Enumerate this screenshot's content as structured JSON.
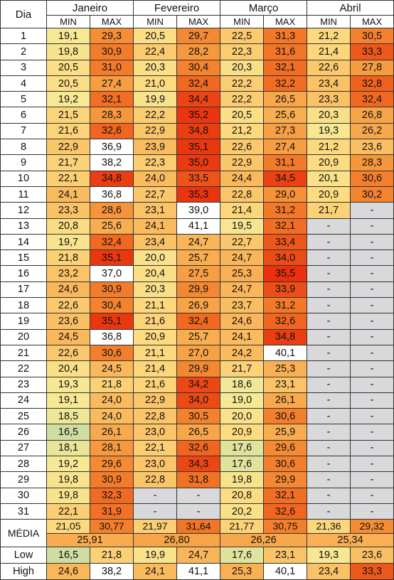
{
  "header": {
    "dia": "Dia",
    "months": [
      "Janeiro",
      "Fevereiro",
      "Março",
      "Abril"
    ],
    "min_label": "MIN",
    "max_label": "MAX"
  },
  "rows": [
    {
      "day": "1",
      "vals": [
        "19,1",
        "29,3",
        "20,5",
        "29,7",
        "22,5",
        "31,3",
        "21,2",
        "30,5"
      ]
    },
    {
      "day": "2",
      "vals": [
        "19,8",
        "30,9",
        "22,4",
        "28,2",
        "22,3",
        "31,6",
        "21,4",
        "33,3"
      ]
    },
    {
      "day": "3",
      "vals": [
        "20,5",
        "31,0",
        "20,3",
        "30,4",
        "20,3",
        "32,1",
        "22,6",
        "27,8"
      ]
    },
    {
      "day": "4",
      "vals": [
        "20,5",
        "27,4",
        "21,0",
        "32,4",
        "22,2",
        "32,2",
        "23,4",
        "32,8"
      ]
    },
    {
      "day": "5",
      "vals": [
        "19,2",
        "32,1",
        "19,9",
        "34,4",
        "22,2",
        "26,5",
        "23,3",
        "32,4"
      ]
    },
    {
      "day": "6",
      "vals": [
        "21,5",
        "28,3",
        "22,2",
        "35,2",
        "20,5",
        "25,6",
        "20,3",
        "26,8"
      ]
    },
    {
      "day": "7",
      "vals": [
        "21,6",
        "32,6",
        "22,9",
        "34,8",
        "21,2",
        "27,3",
        "19,3",
        "26,2"
      ]
    },
    {
      "day": "8",
      "vals": [
        "22,9",
        "36,9",
        "23,9",
        "35,1",
        "22,6",
        "27,4",
        "21,2",
        "23,6"
      ]
    },
    {
      "day": "9",
      "vals": [
        "21,7",
        "38,2",
        "22,3",
        "35,0",
        "22,9",
        "31,1",
        "20,9",
        "28,3"
      ]
    },
    {
      "day": "10",
      "vals": [
        "22,1",
        "34,8",
        "24,0",
        "33,5",
        "24,4",
        "34,5",
        "20,1",
        "30,6"
      ]
    },
    {
      "day": "11",
      "vals": [
        "24,1",
        "36,8",
        "22,7",
        "35,3",
        "22,8",
        "29,0",
        "20,9",
        "30,2"
      ]
    },
    {
      "day": "12",
      "vals": [
        "23,3",
        "28,6",
        "23,1",
        "39,0",
        "21,4",
        "31,2",
        "21,7",
        "-"
      ]
    },
    {
      "day": "13",
      "vals": [
        "20,8",
        "25,6",
        "24,1",
        "41,1",
        "19,5",
        "32,1",
        "-",
        "-"
      ]
    },
    {
      "day": "14",
      "vals": [
        "19,7",
        "32,4",
        "23,4",
        "24,7",
        "22,7",
        "33,4",
        "-",
        "-"
      ]
    },
    {
      "day": "15",
      "vals": [
        "21,8",
        "35,1",
        "20,0",
        "25,7",
        "24,7",
        "34,0",
        "-",
        "-"
      ]
    },
    {
      "day": "16",
      "vals": [
        "23,2",
        "37,0",
        "20,4",
        "27,5",
        "25,3",
        "35,5",
        "-",
        "-"
      ]
    },
    {
      "day": "17",
      "vals": [
        "24,6",
        "30,9",
        "20,3",
        "29,9",
        "24,7",
        "33,9",
        "-",
        "-"
      ]
    },
    {
      "day": "18",
      "vals": [
        "22,6",
        "30,4",
        "21,1",
        "26,9",
        "23,7",
        "31,2",
        "-",
        "-"
      ]
    },
    {
      "day": "19",
      "vals": [
        "23,6",
        "35,1",
        "21,6",
        "32,4",
        "24,6",
        "32,6",
        "-",
        "-"
      ]
    },
    {
      "day": "20",
      "vals": [
        "24,5",
        "36,8",
        "20,9",
        "25,7",
        "24,1",
        "34,8",
        "-",
        "-"
      ]
    },
    {
      "day": "21",
      "vals": [
        "22,6",
        "30,6",
        "21,1",
        "27,0",
        "24,2",
        "40,1",
        "-",
        "-"
      ]
    },
    {
      "day": "22",
      "vals": [
        "20,4",
        "24,5",
        "21,4",
        "29,9",
        "21,7",
        "25,3",
        "-",
        "-"
      ]
    },
    {
      "day": "23",
      "vals": [
        "19,3",
        "21,8",
        "21,6",
        "34,2",
        "18,6",
        "23,1",
        "-",
        "-"
      ]
    },
    {
      "day": "24",
      "vals": [
        "19,1",
        "24,0",
        "22,9",
        "34,0",
        "19,0",
        "26,1",
        "-",
        "-"
      ]
    },
    {
      "day": "25",
      "vals": [
        "18,5",
        "24,0",
        "22,8",
        "30,5",
        "20,0",
        "30,6",
        "-",
        "-"
      ]
    },
    {
      "day": "26",
      "vals": [
        "16,5",
        "26,1",
        "23,0",
        "26,5",
        "20,9",
        "25,9",
        "-",
        "-"
      ]
    },
    {
      "day": "27",
      "vals": [
        "18,1",
        "28,1",
        "22,1",
        "32,6",
        "17,6",
        "29,6",
        "-",
        "-"
      ]
    },
    {
      "day": "28",
      "vals": [
        "19,2",
        "29,6",
        "23,0",
        "34,3",
        "17,6",
        "30,6",
        "-",
        "-"
      ]
    },
    {
      "day": "29",
      "vals": [
        "19,8",
        "30,9",
        "22,8",
        "31,8",
        "19,8",
        "29,9",
        "-",
        "-"
      ]
    },
    {
      "day": "30",
      "vals": [
        "19,8",
        "32,3",
        "-",
        "-",
        "20,8",
        "32,1",
        "-",
        "-"
      ]
    },
    {
      "day": "31",
      "vals": [
        "22,1",
        "31,9",
        "-",
        "-",
        "20,2",
        "32,6",
        "-",
        "-"
      ]
    }
  ],
  "media": {
    "label": "MÉDIA",
    "vals": [
      "21,05",
      "30,77",
      "21,97",
      "31,64",
      "21,77",
      "30,75",
      "21,36",
      "29,32"
    ],
    "monthly": [
      "25,91",
      "26,80",
      "26,26",
      "25,34"
    ]
  },
  "low": {
    "label": "Low",
    "vals": [
      "16,5",
      "21,8",
      "19,9",
      "24,7",
      "17,6",
      "23,1",
      "19,3",
      "23,6"
    ]
  },
  "high": {
    "label": "High",
    "vals": [
      "24,6",
      "38,2",
      "24,1",
      "41,1",
      "25,3",
      "40,1",
      "23,4",
      "33,3"
    ]
  },
  "colors": {
    "gray_empty": "#d9d9db",
    "cool": "#d7dfa0",
    "hot": "#ec3314",
    "white": "#ffffff"
  }
}
